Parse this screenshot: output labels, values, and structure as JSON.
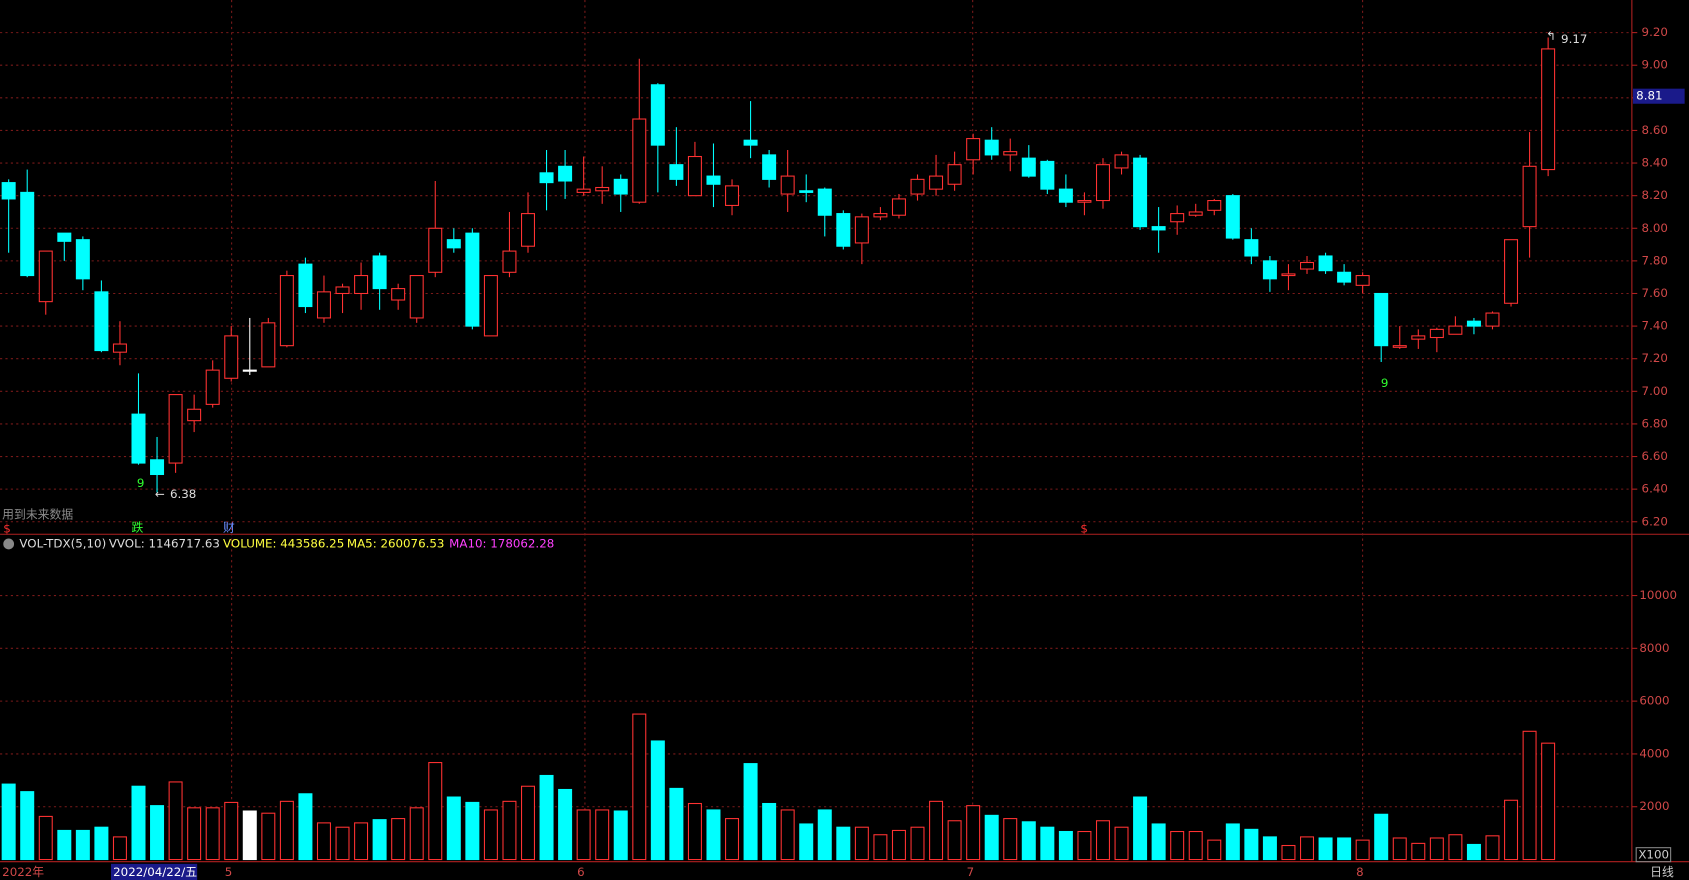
{
  "chart_data": {
    "type": "candlestick",
    "categories": [
      "2022年",
      null,
      null,
      null,
      null,
      null,
      null,
      null,
      null,
      null,
      null,
      null,
      "5",
      null,
      null,
      null,
      null,
      null,
      null,
      null,
      null,
      null,
      null,
      null,
      null,
      null,
      null,
      null,
      null,
      null,
      null,
      "6",
      null,
      null,
      null,
      null,
      null,
      null,
      null,
      null,
      null,
      null,
      null,
      null,
      null,
      null,
      null,
      null,
      null,
      null,
      null,
      null,
      "7",
      null,
      null,
      null,
      null,
      null,
      null,
      null,
      null,
      null,
      null,
      null,
      null,
      null,
      null,
      null,
      null,
      null,
      null,
      null,
      null,
      "8",
      null,
      null,
      null,
      null,
      null,
      null,
      null,
      null,
      null,
      null
    ],
    "open": [
      8.28,
      8.22,
      7.55,
      7.97,
      7.93,
      7.61,
      7.24,
      6.86,
      6.58,
      6.56,
      6.82,
      6.92,
      7.08,
      7.13,
      7.15,
      7.28,
      7.78,
      7.45,
      7.6,
      7.6,
      7.83,
      7.56,
      7.45,
      7.73,
      7.93,
      7.97,
      7.34,
      7.73,
      7.89,
      8.34,
      8.38,
      8.22,
      8.23,
      8.3,
      8.16,
      8.88,
      8.39,
      8.2,
      8.32,
      8.14,
      8.54,
      8.45,
      8.21,
      8.23,
      8.24,
      8.09,
      7.91,
      8.07,
      8.08,
      8.21,
      8.24,
      8.27,
      8.42,
      8.54,
      8.45,
      8.43,
      8.41,
      8.24,
      8.16,
      8.17,
      8.37,
      8.43,
      8.01,
      8.04,
      8.08,
      8.11,
      8.2,
      7.93,
      7.8,
      7.71,
      7.75,
      7.83,
      7.73,
      7.65,
      7.6,
      7.27,
      7.32,
      7.33,
      7.35,
      7.43,
      7.4,
      7.54,
      8.01,
      8.36
    ],
    "high": [
      8.3,
      8.36,
      7.86,
      7.97,
      7.95,
      7.68,
      7.43,
      7.11,
      6.72,
      6.98,
      6.98,
      7.19,
      7.4,
      7.45,
      7.45,
      7.74,
      7.82,
      7.71,
      7.66,
      7.79,
      7.85,
      7.66,
      7.71,
      8.29,
      8.0,
      8.0,
      7.71,
      8.1,
      8.22,
      8.48,
      8.48,
      8.44,
      8.38,
      8.33,
      9.04,
      8.89,
      8.62,
      8.53,
      8.52,
      8.3,
      8.78,
      8.48,
      8.48,
      8.33,
      8.25,
      8.11,
      8.09,
      8.13,
      8.21,
      8.33,
      8.45,
      8.47,
      8.58,
      8.62,
      8.55,
      8.51,
      8.42,
      8.33,
      8.22,
      8.43,
      8.47,
      8.45,
      8.13,
      8.14,
      8.15,
      8.18,
      8.21,
      8.0,
      7.83,
      7.78,
      7.83,
      7.85,
      7.78,
      7.73,
      7.6,
      7.4,
      7.38,
      7.39,
      7.46,
      7.45,
      7.49,
      7.93,
      8.59,
      9.17
    ],
    "low": [
      7.85,
      7.7,
      7.47,
      7.8,
      7.62,
      7.24,
      7.16,
      6.55,
      6.38,
      6.5,
      6.75,
      6.9,
      7.06,
      7.1,
      7.15,
      7.27,
      7.48,
      7.42,
      7.48,
      7.5,
      7.5,
      7.5,
      7.42,
      7.7,
      7.85,
      7.38,
      7.34,
      7.7,
      7.85,
      8.11,
      8.18,
      8.2,
      8.15,
      8.1,
      8.15,
      8.22,
      8.26,
      8.2,
      8.13,
      8.08,
      8.43,
      8.25,
      8.1,
      8.16,
      7.95,
      7.87,
      7.78,
      8.05,
      8.06,
      8.17,
      8.2,
      8.23,
      8.33,
      8.42,
      8.35,
      8.31,
      8.21,
      8.13,
      8.08,
      8.12,
      8.33,
      7.99,
      7.85,
      7.96,
      8.07,
      8.08,
      7.93,
      7.78,
      7.61,
      7.62,
      7.72,
      7.72,
      7.65,
      7.6,
      7.18,
      7.26,
      7.26,
      7.24,
      7.35,
      7.35,
      7.38,
      7.52,
      7.82,
      8.32
    ],
    "close": [
      8.18,
      7.71,
      7.86,
      7.92,
      7.69,
      7.25,
      7.29,
      6.56,
      6.49,
      6.98,
      6.89,
      7.13,
      7.34,
      7.13,
      7.42,
      7.71,
      7.52,
      7.61,
      7.64,
      7.71,
      7.63,
      7.63,
      7.71,
      8.0,
      7.88,
      7.4,
      7.71,
      7.86,
      8.09,
      8.28,
      8.29,
      8.24,
      8.25,
      8.21,
      8.67,
      8.51,
      8.3,
      8.44,
      8.27,
      8.26,
      8.51,
      8.3,
      8.32,
      8.22,
      8.08,
      7.89,
      8.07,
      8.09,
      8.18,
      8.3,
      8.32,
      8.39,
      8.55,
      8.45,
      8.47,
      8.32,
      8.24,
      8.16,
      8.17,
      8.39,
      8.45,
      8.01,
      7.99,
      8.09,
      8.1,
      8.17,
      7.94,
      7.83,
      7.69,
      7.72,
      7.79,
      7.74,
      7.67,
      7.71,
      7.28,
      7.28,
      7.34,
      7.38,
      7.4,
      7.4,
      7.48,
      7.93,
      8.38,
      9.1
    ],
    "volume": [
      2857,
      2571,
      1633,
      1102,
      1102,
      1224,
      857,
      2776,
      2041,
      2939,
      1959,
      1959,
      2163,
      1837,
      1755,
      2204,
      2490,
      1388,
      1224,
      1388,
      1510,
      1551,
      1959,
      3673,
      2367,
      2163,
      1878,
      2204,
      2776,
      3184,
      2653,
      1878,
      1878,
      1837,
      5510,
      4490,
      2694,
      2122,
      1878,
      1551,
      3633,
      2122,
      1878,
      1347,
      1878,
      1224,
      1224,
      939,
      1102,
      1224,
      2204,
      1469,
      2041,
      1673,
      1551,
      1429,
      1224,
      1061,
      1061,
      1469,
      1224,
      2367,
      1347,
      1061,
      1061,
      735,
      1347,
      1143,
      857,
      531,
      857,
      816,
      816,
      735,
      1714,
      816,
      612,
      816,
      939,
      571,
      898,
      2245,
      4857,
      4408
    ],
    "up_color": "#ff3232",
    "down_color": "#00ffff",
    "doji_color": "#ffffff",
    "ylim": [
      6.13,
      9.4
    ],
    "yticks": [
      {
        "value": 9.2,
        "label": "9.20"
      },
      {
        "value": 9.0,
        "label": "9.00"
      },
      {
        "value": 8.8,
        "label": "8.80"
      },
      {
        "value": 8.6,
        "label": "8.60"
      },
      {
        "value": 8.4,
        "label": "8.40"
      },
      {
        "value": 8.2,
        "label": "8.20"
      },
      {
        "value": 8.0,
        "label": "8.00"
      },
      {
        "value": 7.8,
        "label": "7.80"
      },
      {
        "value": 7.6,
        "label": "7.60"
      },
      {
        "value": 7.4,
        "label": "7.40"
      },
      {
        "value": 7.2,
        "label": "7.20"
      },
      {
        "value": 7.0,
        "label": "7.00"
      },
      {
        "value": 6.8,
        "label": "6.80"
      },
      {
        "value": 6.6,
        "label": "6.60"
      },
      {
        "value": 6.4,
        "label": "6.40"
      },
      {
        "value": 6.2,
        "label": "6.20"
      }
    ],
    "y2lim": [
      0,
      11750
    ],
    "y2ticks": [
      2000,
      4000,
      6000,
      8000,
      10000
    ],
    "y2_unit": "X100",
    "price_tag": 8.81,
    "period": "日线",
    "cursor_date": "2022/04/22/五",
    "future_data_note": "用到未来数据",
    "signals": [
      "9",
      "9"
    ],
    "markers": [
      "$",
      "跌",
      "财",
      "$"
    ],
    "indicator": {
      "name": "VOL-TDX(5,10)",
      "vvol": "VVOL: 1146717.63",
      "volume": "VOLUME: 443586.25",
      "ma5": "MA5: 260076.53",
      "ma10": "MA10: 178062.28"
    }
  }
}
